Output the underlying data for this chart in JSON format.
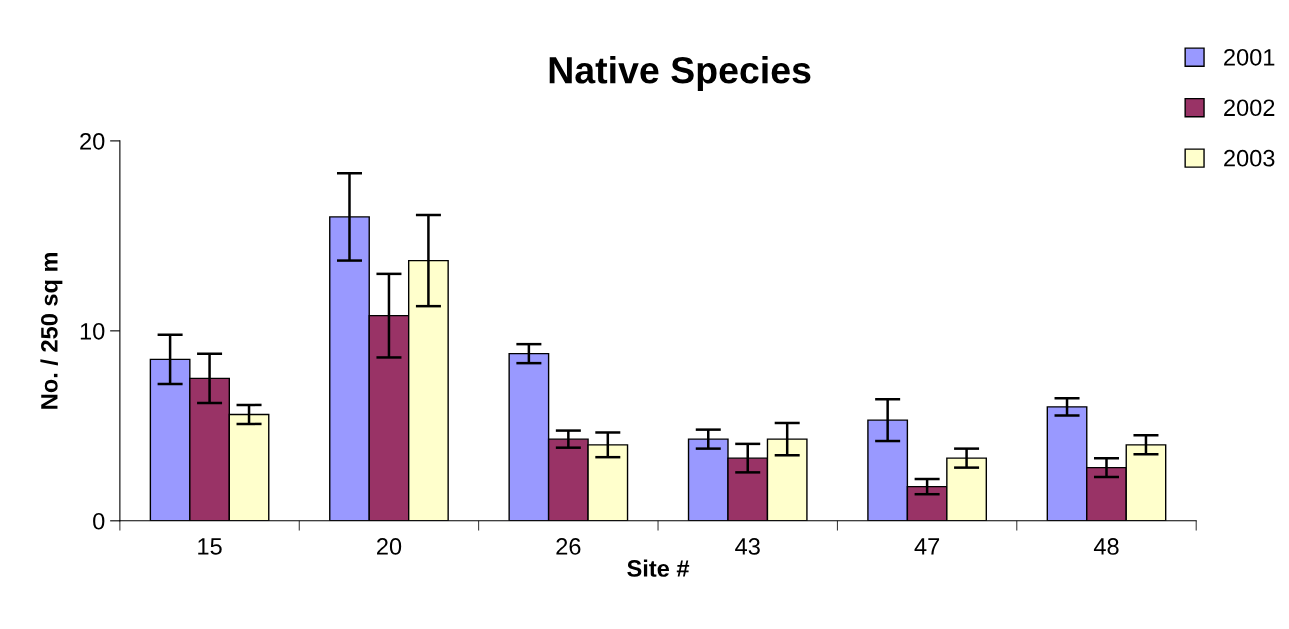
{
  "chart_data": {
    "type": "bar",
    "title": "Native Species",
    "xlabel": "Site #",
    "ylabel": "No. / 250 sq m",
    "categories": [
      "15",
      "20",
      "26",
      "43",
      "47",
      "48"
    ],
    "series": [
      {
        "name": "2001",
        "color": "#9999ff",
        "values": [
          8.5,
          16.0,
          8.8,
          4.3,
          5.3,
          6.0
        ],
        "errors": [
          1.3,
          2.3,
          0.5,
          0.5,
          1.1,
          0.45
        ]
      },
      {
        "name": "2002",
        "color": "#993366",
        "values": [
          7.5,
          10.8,
          4.3,
          3.3,
          1.8,
          2.8
        ],
        "errors": [
          1.3,
          2.2,
          0.45,
          0.75,
          0.4,
          0.5
        ]
      },
      {
        "name": "2003",
        "color": "#ffffcc",
        "values": [
          5.6,
          13.7,
          4.0,
          4.3,
          3.3,
          4.0
        ],
        "errors": [
          0.5,
          2.4,
          0.65,
          0.85,
          0.5,
          0.5
        ]
      }
    ],
    "ylim": [
      0,
      20
    ],
    "yticks": [
      0,
      10,
      20
    ],
    "grid": false,
    "legend": "top right"
  }
}
